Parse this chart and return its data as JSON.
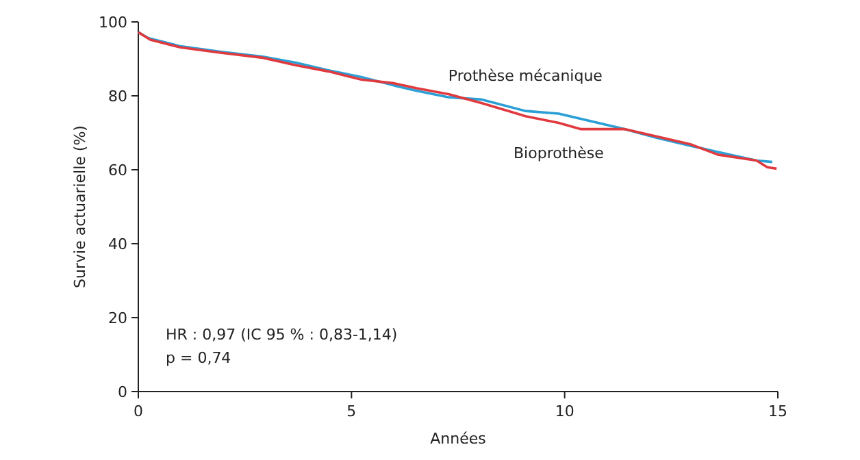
{
  "chart_data": {
    "type": "line",
    "xlabel": "Années",
    "ylabel": "Survie actuarielle (%)",
    "xlim": [
      0,
      15
    ],
    "xticks": [
      0,
      5,
      10,
      15
    ],
    "ylim": [
      0,
      100
    ],
    "yticks": [
      0,
      20,
      40,
      60,
      80,
      100
    ],
    "annotations": [
      "HR : 0,97 (IC 95 % : 0,83-1,14)",
      "p = 0,74"
    ],
    "series": [
      {
        "name": "Prothèse mécanique",
        "color": "#2a9fd6",
        "x": [
          0,
          0.24,
          0.99,
          1.89,
          2.92,
          3.69,
          4.46,
          5.23,
          6.0,
          6.52,
          7.29,
          8.06,
          9.08,
          9.86,
          10.63,
          11.4,
          12.17,
          12.95,
          13.59,
          14.5,
          14.87
        ],
        "values": [
          97.2,
          95.6,
          93.4,
          92.0,
          90.6,
          89.0,
          86.9,
          85.1,
          82.8,
          81.4,
          79.6,
          79.0,
          75.9,
          75.2,
          73.1,
          71.0,
          68.6,
          66.5,
          64.8,
          62.5,
          62.1
        ]
      },
      {
        "name": "Bioprothèse",
        "color": "#e03a3e",
        "x": [
          0,
          0.28,
          0.99,
          1.89,
          2.92,
          3.69,
          4.46,
          5.23,
          6.0,
          6.52,
          7.29,
          8.06,
          9.08,
          9.86,
          10.37,
          11.4,
          12.17,
          12.95,
          13.59,
          14.5,
          14.75,
          14.97
        ],
        "values": [
          97.2,
          95.2,
          93.1,
          91.7,
          90.3,
          88.3,
          86.6,
          84.4,
          83.4,
          82.1,
          80.4,
          78.0,
          74.5,
          72.7,
          71.0,
          71.0,
          69.0,
          66.9,
          64.1,
          62.5,
          60.7,
          60.3
        ]
      }
    ]
  }
}
